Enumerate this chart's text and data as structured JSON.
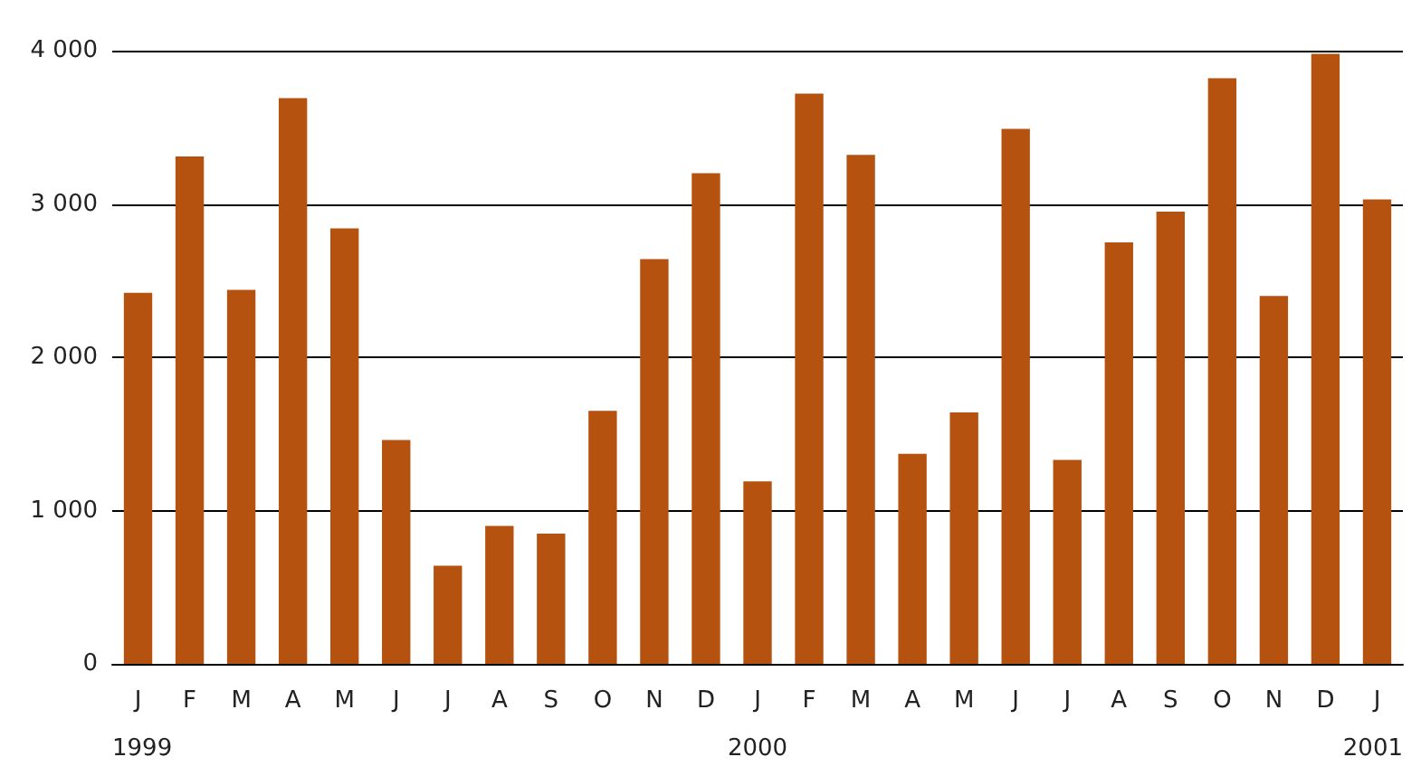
{
  "chart_data": {
    "type": "bar",
    "categories": [
      "J",
      "F",
      "M",
      "A",
      "M",
      "J",
      "J",
      "A",
      "S",
      "O",
      "N",
      "D",
      "J",
      "F",
      "M",
      "A",
      "M",
      "J",
      "J",
      "A",
      "S",
      "O",
      "N",
      "D",
      "J"
    ],
    "values": [
      2420,
      3310,
      2440,
      3690,
      2840,
      1460,
      640,
      900,
      850,
      1650,
      2640,
      3200,
      1190,
      3720,
      3320,
      1370,
      1640,
      3490,
      1330,
      2750,
      2950,
      3820,
      2400,
      3980,
      3030
    ],
    "color": "#b5520f",
    "ylim": [
      0,
      4000
    ],
    "yticks": [
      0,
      {
        "value": 1000,
        "label": "1 000"
      },
      {
        "value": 2000,
        "label": "2 000"
      },
      {
        "value": 3000,
        "label": "3 000"
      },
      {
        "value": 4000,
        "label": "4 000"
      }
    ],
    "grid": "y",
    "annotations": [
      "1999",
      "2000",
      "2001"
    ]
  }
}
